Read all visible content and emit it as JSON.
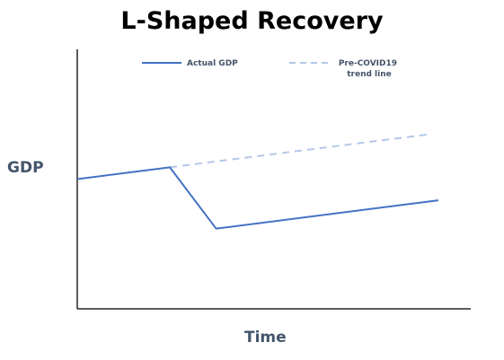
{
  "chart_data": {
    "type": "line",
    "title": "L-Shaped Recovery",
    "xlabel": "Time",
    "ylabel": "GDP",
    "grid": false,
    "legend_position": "top",
    "series": [
      {
        "name": "Actual GDP",
        "color": "#4472c4",
        "style": "solid",
        "points": [
          [
            0,
            45
          ],
          [
            20,
            50
          ],
          [
            30,
            24
          ],
          [
            78,
            36
          ]
        ]
      },
      {
        "name": "Pre-COVID19 trend line",
        "color": "#b4c7e7",
        "style": "dashed",
        "points": [
          [
            20,
            50
          ],
          [
            76,
            64
          ]
        ]
      }
    ],
    "xlim": [
      0,
      85
    ],
    "ylim": [
      -10,
      100
    ]
  }
}
